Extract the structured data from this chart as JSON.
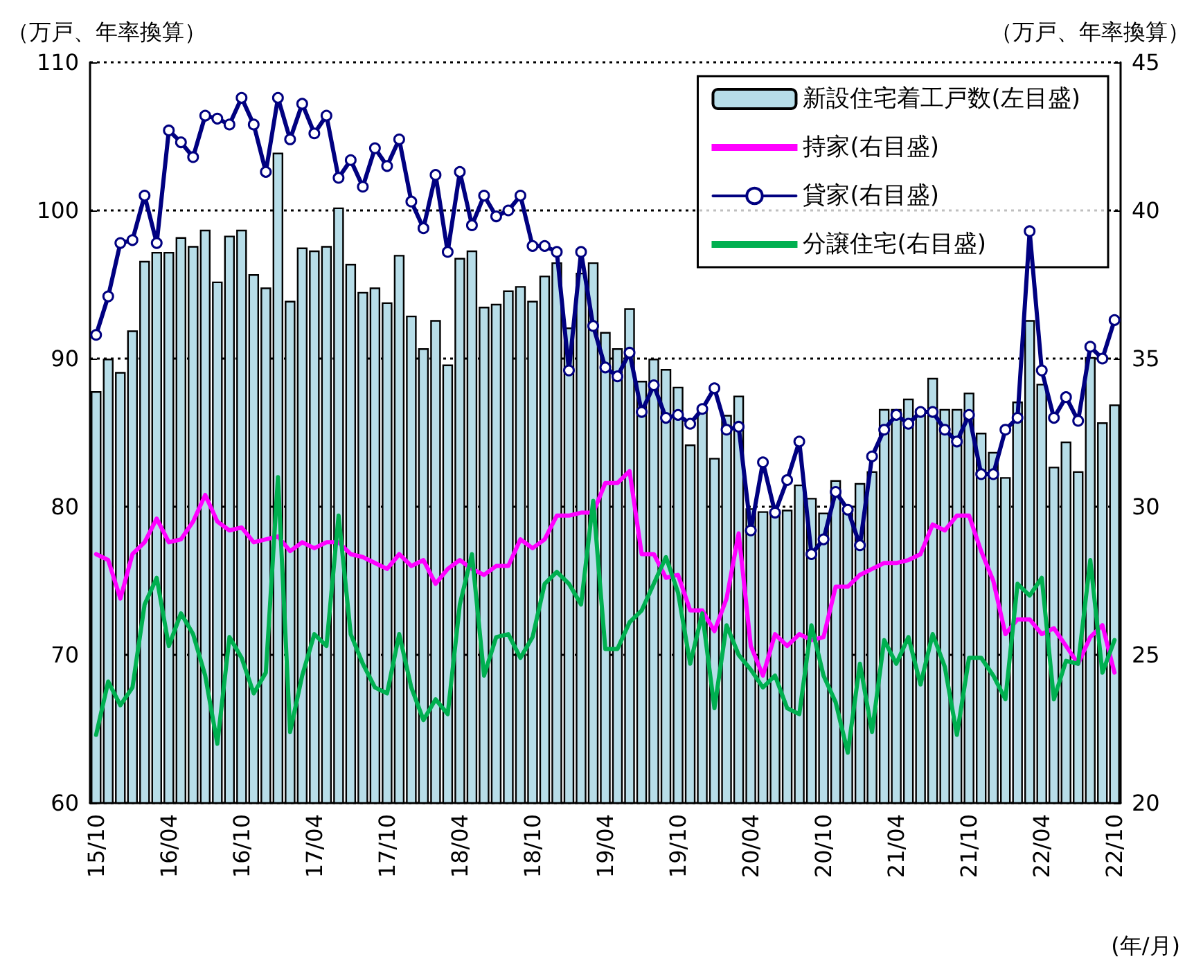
{
  "chart_data": {
    "type": "bar",
    "ylabel": "（万戸、年率換算）",
    "y2label": "（万戸、年率換算）",
    "xlabel": "(年/月)",
    "categories": [
      "15/10",
      null,
      null,
      null,
      null,
      null,
      "16/04",
      null,
      null,
      null,
      null,
      null,
      "16/10",
      null,
      null,
      null,
      null,
      null,
      "17/04",
      null,
      null,
      null,
      null,
      null,
      "17/10",
      null,
      null,
      null,
      null,
      null,
      "18/04",
      null,
      null,
      null,
      null,
      null,
      "18/10",
      null,
      null,
      null,
      null,
      null,
      "19/04",
      null,
      null,
      null,
      null,
      null,
      "19/10",
      null,
      null,
      null,
      null,
      null,
      "20/04",
      null,
      null,
      null,
      null,
      null,
      "20/10",
      null,
      null,
      null,
      null,
      null,
      "21/04",
      null,
      null,
      null,
      null,
      null,
      "21/10",
      null,
      null,
      null,
      null,
      null,
      "22/04",
      null,
      null,
      null,
      null,
      null,
      "22/10"
    ],
    "series": [
      {
        "name": "新設住宅着工戸数(左目盛)",
        "axis": "y",
        "color": "#b7dde8",
        "values": [
          87.8,
          90.0,
          89.1,
          91.9,
          96.6,
          97.2,
          97.2,
          98.2,
          97.6,
          98.7,
          95.2,
          98.3,
          98.7,
          95.7,
          94.8,
          103.9,
          93.9,
          97.5,
          97.3,
          97.6,
          100.2,
          96.4,
          94.5,
          94.8,
          93.8,
          97.0,
          92.9,
          90.7,
          92.6,
          89.6,
          96.8,
          97.3,
          93.5,
          93.7,
          94.6,
          94.9,
          93.9,
          95.6,
          96.5,
          92.1,
          95.8,
          96.5,
          91.8,
          90.7,
          93.4,
          88.5,
          90.0,
          89.3,
          88.1,
          84.2,
          86.5,
          83.3,
          86.2,
          87.5,
          79.9,
          79.7,
          79.8,
          79.8,
          81.5,
          80.6,
          79.6,
          81.8,
          79.6,
          81.6,
          82.4,
          86.6,
          86.6,
          87.3,
          86.6,
          88.7,
          86.6,
          86.6,
          87.7,
          85.0,
          83.7,
          82.0,
          87.1,
          92.6,
          88.3,
          82.7,
          84.4,
          82.4,
          90.1,
          85.7,
          86.9
        ]
      },
      {
        "name": "持家(右目盛)",
        "type": "line",
        "axis": "y2",
        "color": "#ff00ff",
        "marker": "none",
        "values": [
          28.4,
          28.2,
          26.9,
          28.4,
          28.8,
          29.6,
          28.8,
          28.9,
          29.5,
          30.4,
          29.5,
          29.2,
          29.3,
          28.8,
          28.9,
          29.0,
          28.5,
          28.8,
          28.6,
          28.8,
          28.8,
          28.4,
          28.3,
          28.1,
          27.9,
          28.4,
          28.0,
          28.2,
          27.4,
          27.9,
          28.2,
          27.9,
          27.7,
          28.0,
          28.0,
          28.9,
          28.6,
          28.9,
          29.7,
          29.7,
          29.8,
          29.8,
          30.8,
          30.8,
          31.2,
          28.4,
          28.4,
          27.6,
          27.7,
          26.5,
          26.5,
          25.8,
          26.9,
          29.1,
          25.3,
          24.3,
          25.7,
          25.3,
          25.7,
          25.5,
          25.6,
          27.3,
          27.3,
          27.7,
          27.9,
          28.1,
          28.1,
          28.2,
          28.4,
          29.4,
          29.2,
          29.7,
          29.7,
          28.5,
          27.5,
          25.7,
          26.2,
          26.2,
          25.7,
          25.9,
          25.3,
          24.7,
          25.6,
          26.0,
          24.4
        ]
      },
      {
        "name": "貸家(右目盛)",
        "type": "line",
        "axis": "y2",
        "color": "#000080",
        "marker": "circle",
        "values": [
          35.8,
          37.1,
          38.9,
          39.0,
          40.5,
          38.9,
          42.7,
          42.3,
          41.8,
          43.2,
          43.1,
          42.9,
          43.8,
          42.9,
          41.3,
          43.8,
          42.4,
          43.6,
          42.6,
          43.2,
          41.1,
          41.7,
          40.8,
          42.1,
          41.5,
          42.4,
          40.3,
          39.4,
          41.2,
          38.6,
          41.3,
          39.5,
          40.5,
          39.8,
          40.0,
          40.5,
          38.8,
          38.8,
          38.6,
          34.6,
          38.6,
          36.1,
          34.7,
          34.4,
          35.2,
          33.2,
          34.1,
          33.0,
          33.1,
          32.8,
          33.3,
          34.0,
          32.6,
          32.7,
          29.2,
          31.5,
          29.8,
          30.9,
          32.2,
          28.4,
          28.9,
          30.5,
          29.9,
          28.7,
          31.7,
          32.6,
          33.1,
          32.8,
          33.2,
          33.2,
          32.6,
          32.2,
          33.1,
          31.1,
          31.1,
          32.6,
          33.0,
          39.3,
          34.6,
          33.0,
          33.7,
          32.9,
          35.4,
          35.0,
          36.3
        ]
      },
      {
        "name": "分譲住宅(右目盛)",
        "type": "line",
        "axis": "y2",
        "color": "#00b050",
        "marker": "none",
        "values": [
          22.3,
          24.1,
          23.3,
          23.9,
          26.7,
          27.6,
          25.3,
          26.4,
          25.7,
          24.3,
          22.0,
          25.6,
          24.9,
          23.7,
          24.4,
          31.0,
          22.4,
          24.3,
          25.7,
          25.3,
          29.7,
          25.7,
          24.7,
          23.9,
          23.7,
          25.7,
          23.9,
          22.8,
          23.5,
          23.0,
          26.7,
          28.4,
          24.3,
          25.6,
          25.7,
          24.9,
          25.6,
          27.4,
          27.8,
          27.4,
          26.7,
          30.2,
          25.2,
          25.2,
          26.1,
          26.5,
          27.4,
          28.3,
          27.1,
          24.7,
          26.4,
          23.2,
          26.0,
          25.0,
          24.5,
          23.9,
          24.3,
          23.2,
          23.0,
          26.0,
          24.3,
          23.4,
          21.7,
          24.7,
          22.4,
          25.5,
          24.7,
          25.6,
          24.0,
          25.7,
          24.6,
          22.3,
          24.9,
          24.9,
          24.3,
          23.5,
          27.4,
          27.0,
          27.6,
          23.5,
          24.8,
          24.7,
          28.2,
          24.4,
          25.5
        ]
      }
    ],
    "ylim": [
      60,
      110
    ],
    "yticks": [
      60,
      70,
      80,
      90,
      100,
      110
    ],
    "y2lim": [
      20,
      45
    ],
    "y2ticks": [
      20,
      25,
      30,
      35,
      40,
      45
    ],
    "grid": "y",
    "legend": "top right"
  }
}
